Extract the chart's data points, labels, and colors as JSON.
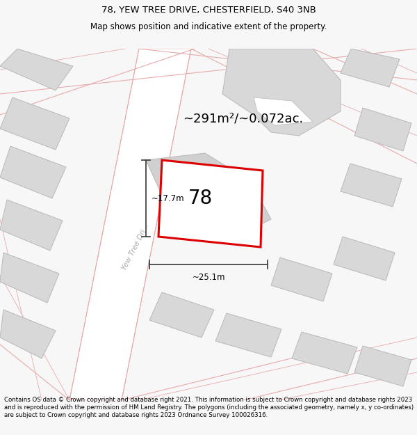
{
  "title_line1": "78, YEW TREE DRIVE, CHESTERFIELD, S40 3NB",
  "title_line2": "Map shows position and indicative extent of the property.",
  "footer": "Contains OS data © Crown copyright and database right 2021. This information is subject to Crown copyright and database rights 2023 and is reproduced with the permission of HM Land Registry. The polygons (including the associated geometry, namely x, y co-ordinates) are subject to Crown copyright and database rights 2023 Ordnance Survey 100026316.",
  "area_label": "~291m²/~0.072ac.",
  "number_label": "78",
  "width_label": "~25.1m",
  "height_label": "~17.7m",
  "road_label": "Yew Tree Dri...",
  "bg_color": "#f7f7f7",
  "map_bg": "#ffffff",
  "plot_color": "#dd0000",
  "building_fill": "#d8d8d8",
  "building_edge": "#b8b8b8",
  "road_line_color": "#e8aaaa",
  "title_fontsize": 9.5,
  "subtitle_fontsize": 8.5,
  "footer_fontsize": 6.2
}
